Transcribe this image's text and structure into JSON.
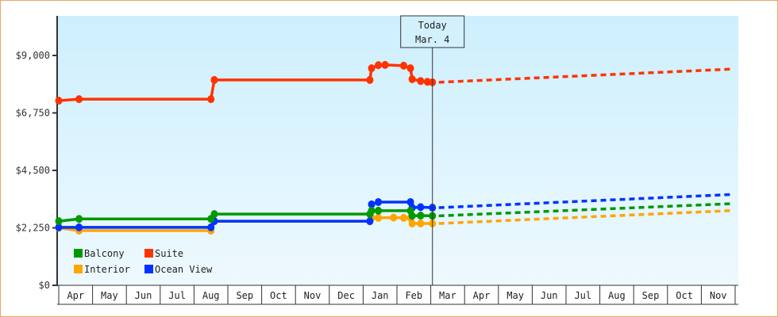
{
  "chart_data": {
    "type": "line",
    "title": "",
    "xlabel": "",
    "ylabel": "",
    "ylim": [
      0,
      10000
    ],
    "y_ticks": [
      "$0",
      "$2,250",
      "$4,500",
      "$6,750",
      "$9,000"
    ],
    "y_tick_values": [
      0,
      2250,
      4500,
      6750,
      9000
    ],
    "x_months": [
      "Apr",
      "May",
      "Jun",
      "Jul",
      "Aug",
      "Sep",
      "Oct",
      "Nov",
      "Dec",
      "Jan",
      "Feb",
      "Mar",
      "Apr",
      "May",
      "Jun",
      "Jul",
      "Aug",
      "Sep",
      "Oct",
      "Nov"
    ],
    "today_marker": {
      "line1": "Today",
      "line2": "Mar. 4"
    },
    "legend": [
      {
        "name": "Balcony",
        "color": "#009900"
      },
      {
        "name": "Suite",
        "color": "#ff3300"
      },
      {
        "name": "Interior",
        "color": "#ffa500"
      },
      {
        "name": "Ocean View",
        "color": "#0033ff"
      }
    ],
    "grid": false,
    "legend_position": "lower-left",
    "series": [
      {
        "name": "Suite",
        "color": "#ff3300",
        "history": [
          [
            0,
            7230
          ],
          [
            0.6,
            7290
          ],
          [
            4.5,
            7290
          ],
          [
            4.6,
            8040
          ],
          [
            9.2,
            8040
          ],
          [
            9.25,
            8500
          ],
          [
            9.45,
            8620
          ],
          [
            9.65,
            8630
          ],
          [
            10.2,
            8600
          ],
          [
            10.4,
            8500
          ],
          [
            10.45,
            8070
          ],
          [
            10.7,
            8000
          ],
          [
            10.9,
            7970
          ],
          [
            11.05,
            7950
          ]
        ],
        "forecast": [
          [
            11.05,
            7950
          ],
          [
            20,
            8470
          ]
        ]
      },
      {
        "name": "Balcony",
        "color": "#009900",
        "history": [
          [
            0,
            2510
          ],
          [
            0.6,
            2600
          ],
          [
            4.5,
            2600
          ],
          [
            4.6,
            2790
          ],
          [
            9.2,
            2790
          ],
          [
            9.25,
            2920
          ],
          [
            9.45,
            2920
          ],
          [
            10.4,
            2920
          ],
          [
            10.45,
            2720
          ],
          [
            10.7,
            2730
          ],
          [
            11.05,
            2720
          ]
        ],
        "forecast": [
          [
            11.05,
            2720
          ],
          [
            20,
            3200
          ]
        ]
      },
      {
        "name": "Interior",
        "color": "#ffa500",
        "history": [
          [
            0,
            2250
          ],
          [
            0.6,
            2140
          ],
          [
            4.5,
            2140
          ],
          [
            4.6,
            2510
          ],
          [
            9.2,
            2510
          ],
          [
            9.25,
            2640
          ],
          [
            9.45,
            2640
          ],
          [
            9.9,
            2650
          ],
          [
            10.2,
            2640
          ],
          [
            10.4,
            2640
          ],
          [
            10.45,
            2420
          ],
          [
            10.7,
            2420
          ],
          [
            11.05,
            2420
          ]
        ],
        "forecast": [
          [
            11.05,
            2420
          ],
          [
            20,
            2930
          ]
        ]
      },
      {
        "name": "Ocean View",
        "color": "#0033ff",
        "history": [
          [
            0,
            2270
          ],
          [
            0.6,
            2270
          ],
          [
            4.5,
            2270
          ],
          [
            4.6,
            2510
          ],
          [
            9.2,
            2510
          ],
          [
            9.25,
            3170
          ],
          [
            9.45,
            3260
          ],
          [
            10.4,
            3260
          ],
          [
            10.45,
            3040
          ],
          [
            10.7,
            3060
          ],
          [
            11.05,
            3040
          ]
        ],
        "forecast": [
          [
            11.05,
            3040
          ],
          [
            20,
            3560
          ]
        ]
      }
    ]
  }
}
